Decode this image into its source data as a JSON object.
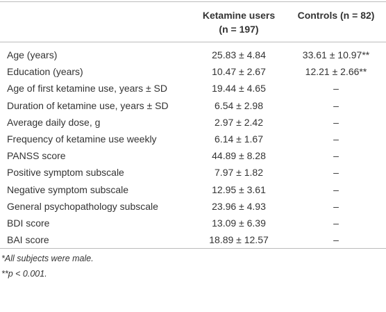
{
  "table": {
    "header": [
      "",
      [
        "Ketamine users",
        "(n = 197)"
      ],
      [
        "Controls (n = 82)"
      ]
    ],
    "rows": [
      [
        "Age (years)",
        "25.83 ± 4.84",
        "33.61 ± 10.97**"
      ],
      [
        "Education (years)",
        "10.47 ± 2.67",
        "12.21 ± 2.66**"
      ],
      [
        "Age of first ketamine use, years ± SD",
        "19.44 ± 4.65",
        "–"
      ],
      [
        "Duration of ketamine use, years ± SD",
        "6.54 ± 2.98",
        "–"
      ],
      [
        "Average daily dose, g",
        "2.97 ± 2.42",
        "–"
      ],
      [
        "Frequency of ketamine use weekly",
        "6.14 ± 1.67",
        "–"
      ],
      [
        "PANSS score",
        "44.89 ± 8.28",
        "–"
      ],
      [
        "Positive symptom subscale",
        "7.97 ± 1.82",
        "–"
      ],
      [
        "Negative symptom subscale",
        "12.95 ± 3.61",
        "–"
      ],
      [
        "General psychopathology subscale",
        "23.96 ± 4.93",
        "–"
      ],
      [
        "BDI score",
        "13.09 ± 6.39",
        "–"
      ],
      [
        "BAI score",
        "18.89 ± 12.57",
        "–"
      ]
    ]
  },
  "footnotes": [
    "*All subjects were male.",
    "**p < 0.001."
  ]
}
